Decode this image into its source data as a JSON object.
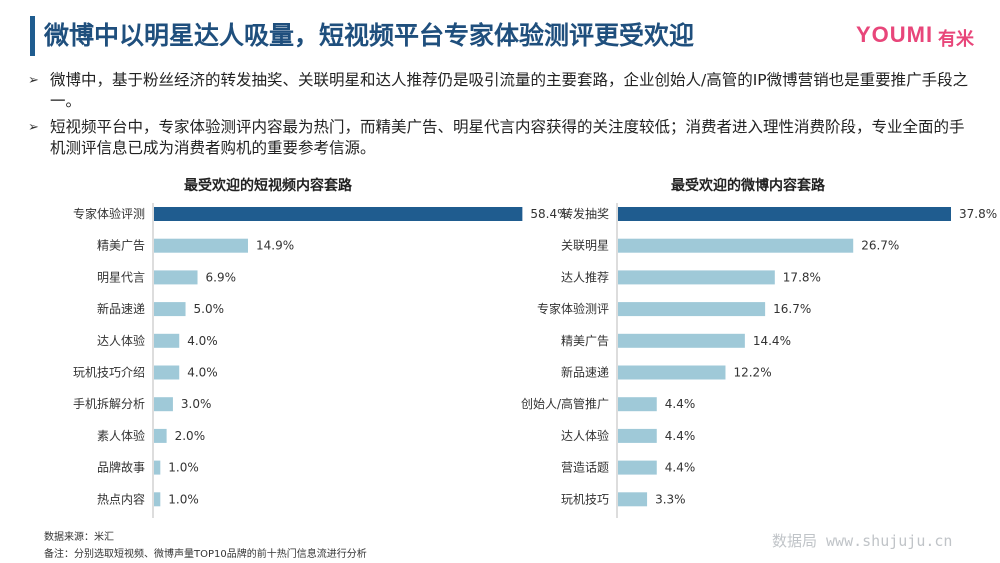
{
  "header": {
    "title": "微博中以明星达人吸量，短视频平台专家体验测评更受欢迎",
    "logo_en": "YOUMI",
    "logo_cn": "有米"
  },
  "bullets": [
    "微博中，基于粉丝经济的转发抽奖、关联明星和达人推荐仍是吸引流量的主要套路，企业创始人/高管的IP微博营销也是重要推广手段之一。",
    "短视频平台中，专家体验测评内容最为热门，而精美广告、明星代言内容获得的关注度较低；消费者进入理性消费阶段，专业全面的手机测评信息已成为消费者购机的重要参考信源。"
  ],
  "bullet_mark": "➢",
  "colors": {
    "highlight": "#1f5c8f",
    "bar": "#9fc9d8",
    "axis": "#bbbbbb",
    "accent": "#1f5c8f"
  },
  "chart_data": [
    {
      "type": "bar",
      "orientation": "horizontal",
      "title": "最受欢迎的短视频内容套路",
      "categories": [
        "专家体验评测",
        "精美广告",
        "明星代言",
        "新品速递",
        "达人体验",
        "玩机技巧介绍",
        "手机拆解分析",
        "素人体验",
        "品牌故事",
        "热点内容"
      ],
      "values": [
        58.4,
        14.9,
        6.9,
        5.0,
        4.0,
        4.0,
        3.0,
        2.0,
        1.0,
        1.0
      ],
      "value_labels": [
        "58.4%",
        "14.9%",
        "6.9%",
        "5.0%",
        "4.0%",
        "4.0%",
        "3.0%",
        "2.0%",
        "1.0%",
        "1.0%"
      ],
      "highlight_index": 0,
      "xlim": [
        0,
        65
      ]
    },
    {
      "type": "bar",
      "orientation": "horizontal",
      "title": "最受欢迎的微博内容套路",
      "categories": [
        "转发抽奖",
        "关联明星",
        "达人推荐",
        "专家体验测评",
        "精美广告",
        "新品速递",
        "创始人/高管推广",
        "达人体验",
        "营造话题",
        "玩机技巧"
      ],
      "values": [
        37.8,
        26.7,
        17.8,
        16.7,
        14.4,
        12.2,
        4.4,
        4.4,
        4.4,
        3.3
      ],
      "value_labels": [
        "37.8%",
        "26.7%",
        "17.8%",
        "16.7%",
        "14.4%",
        "12.2%",
        "4.4%",
        "4.4%",
        "4.4%",
        "3.3%"
      ],
      "highlight_index": 0,
      "xlim": [
        0,
        42
      ]
    }
  ],
  "footnotes": {
    "source": "数据来源：米汇",
    "note": "备注：分别选取短视频、微博声量TOP10品牌的前十热门信息流进行分析"
  },
  "watermark": "数据局  www.shujuju.cn"
}
